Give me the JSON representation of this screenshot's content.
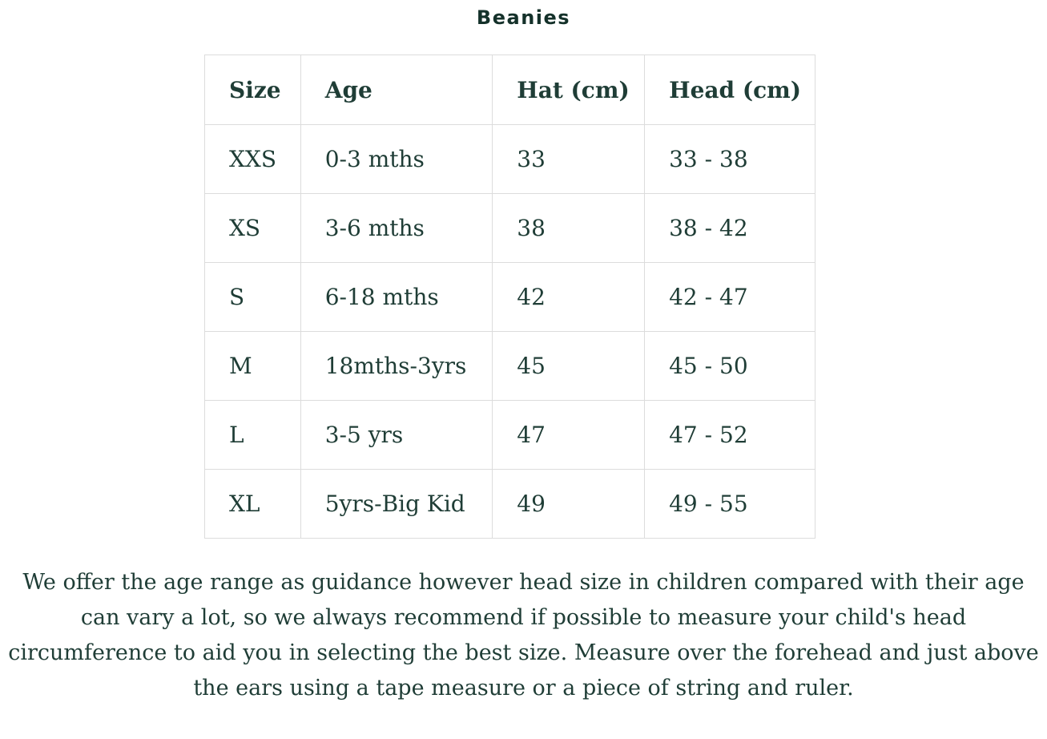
{
  "page": {
    "title": "Beanies",
    "text_color": "#1f3d36",
    "title_color": "#14312a",
    "border_color": "#dcdcdc",
    "background_color": "#ffffff"
  },
  "chart_data": {
    "type": "table",
    "title": "Beanies",
    "columns": [
      "Size",
      "Age",
      "Hat (cm)",
      "Head (cm)"
    ],
    "rows": [
      [
        "XXS",
        "0-3 mths",
        "33",
        "33 - 38"
      ],
      [
        "XS",
        "3-6 mths",
        "38",
        "38 - 42"
      ],
      [
        "S",
        "6-18 mths",
        "42",
        "42 - 47"
      ],
      [
        "M",
        "18mths-3yrs",
        "45",
        "45 - 50"
      ],
      [
        "L",
        "3-5 yrs",
        "47",
        "47 - 52"
      ],
      [
        "XL",
        "5yrs-Big Kid",
        "49",
        "49 - 55"
      ]
    ]
  },
  "note": "We offer the age range as guidance however head size in children compared with their age can vary a lot, so we always recommend if possible to measure your child's head circumference to aid you in selecting the best size. Measure over the forehead and just above the ears using a tape measure or a piece of string and ruler."
}
